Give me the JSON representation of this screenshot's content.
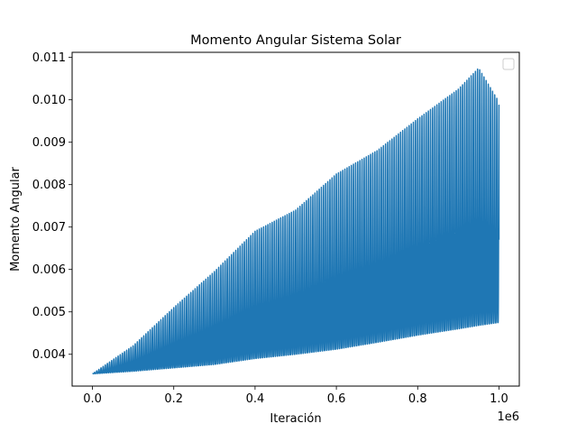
{
  "chart_data": {
    "type": "line",
    "title": "Momento Angular Sistema Solar",
    "xlabel": "Iteración",
    "ylabel": "Momento Angular",
    "x_offset_label": "1e6",
    "xlim": [
      -50000,
      1050000
    ],
    "ylim": [
      0.00325,
      0.01112
    ],
    "xticks": [
      0.0,
      0.2,
      0.4,
      0.6,
      0.8,
      1.0
    ],
    "xtick_labels": [
      "0.0",
      "0.2",
      "0.4",
      "0.6",
      "0.8",
      "1.0"
    ],
    "yticks": [
      0.004,
      0.005,
      0.006,
      0.007,
      0.008,
      0.009,
      0.01,
      0.011
    ],
    "ytick_labels": [
      "0.004",
      "0.005",
      "0.006",
      "0.007",
      "0.008",
      "0.009",
      "0.010",
      "0.011"
    ],
    "grid": false,
    "legend": "upper right, empty",
    "series": [
      {
        "color": "#1f77b4",
        "x_range": [
          0,
          1000000
        ],
        "start_value": 0.00354,
        "envelope": {
          "x": [
            0,
            100000,
            200000,
            300000,
            400000,
            500000,
            600000,
            700000,
            800000,
            900000,
            950000,
            1000000
          ],
          "min": [
            0.00354,
            0.0036,
            0.00368,
            0.00376,
            0.0039,
            0.004,
            0.00412,
            0.00428,
            0.00445,
            0.0046,
            0.00468,
            0.00475
          ],
          "max": [
            0.00354,
            0.0042,
            0.0051,
            0.00595,
            0.0069,
            0.0074,
            0.00825,
            0.0088,
            0.00955,
            0.01025,
            0.01075,
            0.00995
          ]
        },
        "oscillation_cycles": 190,
        "end_value": 0.0067
      }
    ]
  }
}
